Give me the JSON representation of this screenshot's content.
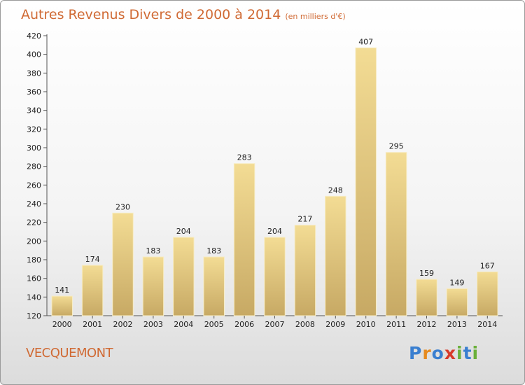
{
  "title": "Autres Revenus Divers de 2000 à 2014",
  "subtitle": "(en milliers d'€)",
  "commune": "VECQUEMONT",
  "logo": {
    "letters": [
      "P",
      "r",
      "o",
      "x",
      "i",
      "t",
      "i"
    ],
    "colors": [
      "#3a7fd0",
      "#e68a1e",
      "#3a7fd0",
      "#d83a2a",
      "#6ab03a",
      "#3a7fd0",
      "#6ab03a"
    ]
  },
  "colors": {
    "bar_top": "#f3dc94",
    "bar_bottom": "#c7a964",
    "text": "#222222",
    "accent": "#d06a34"
  },
  "chart_data": {
    "type": "bar",
    "categories": [
      "2000",
      "2001",
      "2002",
      "2003",
      "2004",
      "2005",
      "2006",
      "2007",
      "2008",
      "2009",
      "2010",
      "2011",
      "2012",
      "2013",
      "2014"
    ],
    "values": [
      141,
      174,
      230,
      183,
      204,
      183,
      283,
      204,
      217,
      248,
      407,
      295,
      159,
      149,
      167
    ],
    "ylim": [
      120,
      420
    ],
    "yticks": [
      120,
      140,
      160,
      180,
      200,
      220,
      240,
      260,
      280,
      300,
      320,
      340,
      360,
      380,
      400,
      420
    ],
    "grid": false,
    "legend": "none"
  }
}
